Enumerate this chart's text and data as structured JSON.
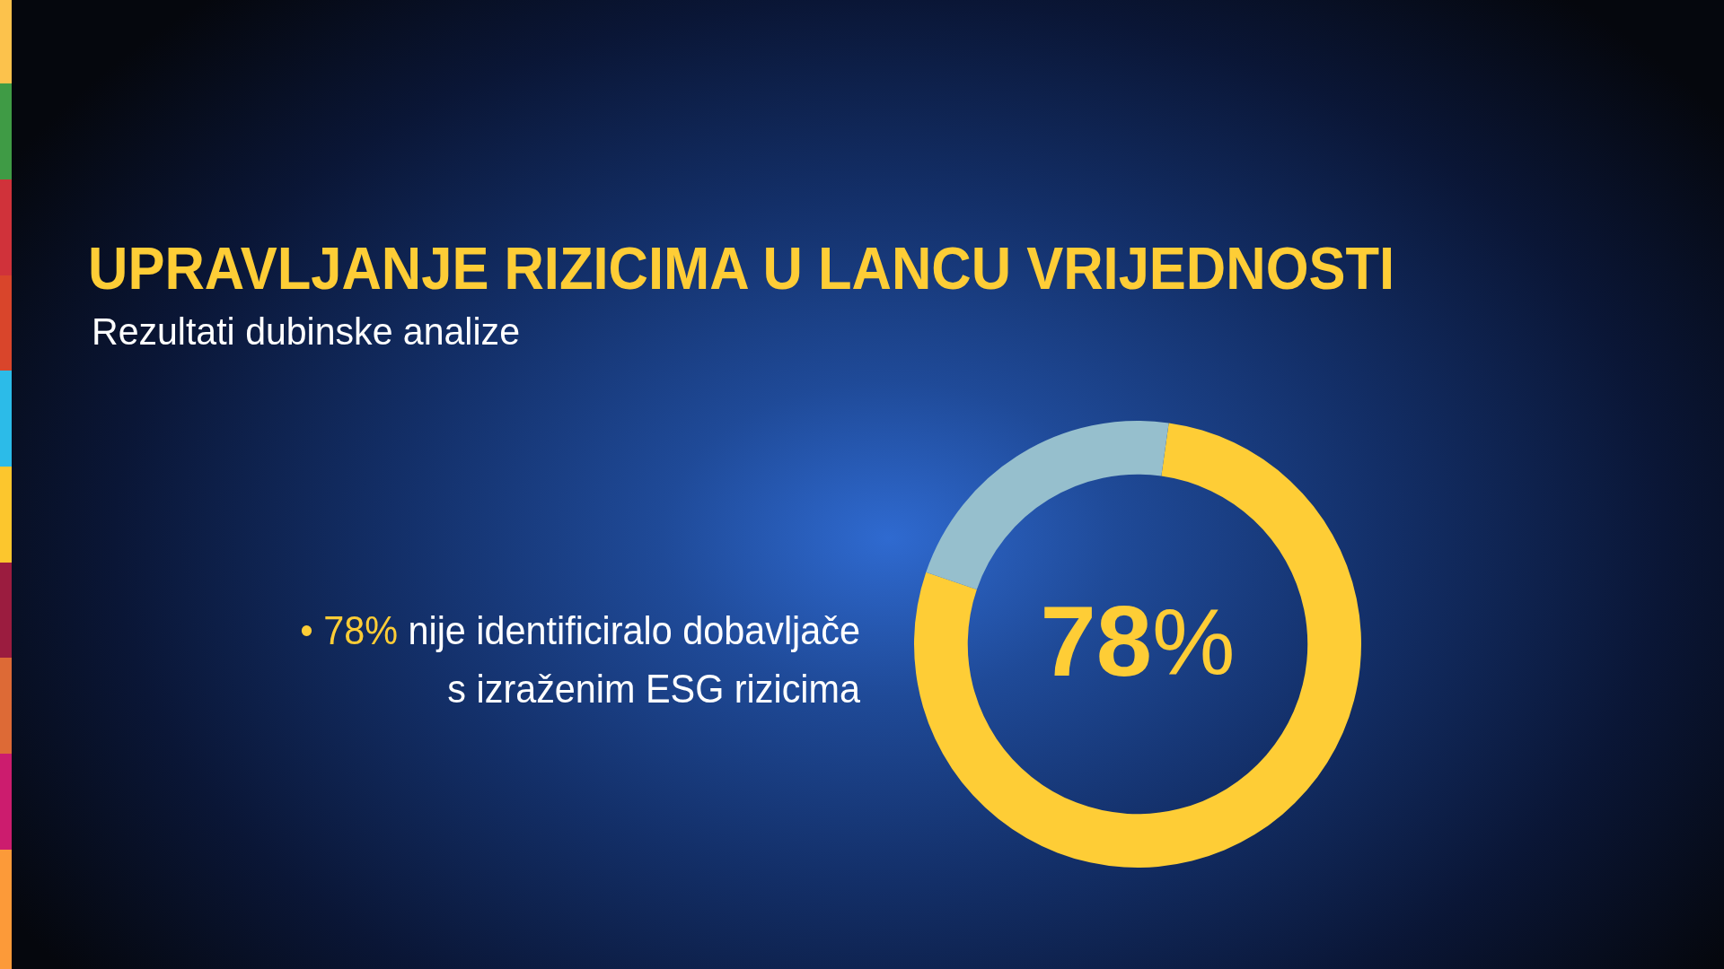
{
  "chart_data": {
    "type": "donut",
    "title": "UPRAVLJANJE RIZICIMA U LANCU VRIJEDNOSTI",
    "subtitle": "Rezultati dubinske analize",
    "categories": [
      null,
      null
    ],
    "values": [
      78,
      22
    ],
    "colors": [
      "#fecd36",
      "#96bfcd"
    ],
    "annotations": [
      "78%",
      "• 78% nije identificiralo dobavljače s izraženim ESG rizicima"
    ]
  }
}
